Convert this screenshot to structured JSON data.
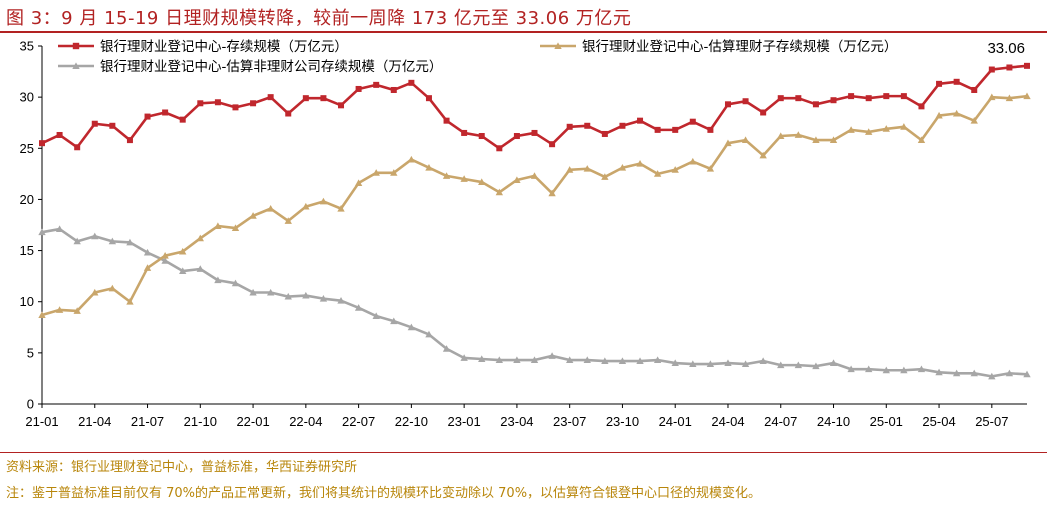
{
  "title": "图 3：9 月 15-19 日理财规模转降，较前一周降 173 亿元至 33.06 万亿元",
  "source": "资料来源：银行业理财登记中心，普益标准，华西证券研究所",
  "note": "注：鉴于普益标准目前仅有 70%的产品正常更新，我们将其统计的规模环比变动除以 70%，以估算符合银登中心口径的规模变化。",
  "chart_data": {
    "type": "line",
    "title": "",
    "xlabel": "",
    "ylabel": "",
    "ylim": [
      0,
      35
    ],
    "yticks": [
      0,
      5,
      10,
      15,
      20,
      25,
      30,
      35
    ],
    "x_tick_labels": [
      "21-01",
      "21-04",
      "21-07",
      "21-10",
      "22-01",
      "22-04",
      "22-07",
      "22-10",
      "23-01",
      "23-04",
      "23-07",
      "23-10",
      "24-01",
      "24-04",
      "24-07",
      "24-10",
      "25-01",
      "25-04",
      "25-07"
    ],
    "x_tick_index": [
      0,
      3,
      6,
      9,
      12,
      15,
      18,
      21,
      24,
      27,
      30,
      33,
      36,
      39,
      42,
      45,
      48,
      51,
      54
    ],
    "legend_position": "top",
    "annotation": {
      "text": "33.06",
      "series": 0,
      "point": "last"
    },
    "series": [
      {
        "name": "银行理财业登记中心-存续规模（万亿元）",
        "color": "#c0272d",
        "marker": "square",
        "values": [
          25.5,
          26.3,
          25.1,
          27.4,
          27.2,
          25.8,
          28.1,
          28.5,
          27.8,
          29.4,
          29.5,
          29.0,
          29.4,
          30.0,
          28.4,
          29.9,
          29.9,
          29.2,
          30.8,
          31.2,
          30.7,
          31.4,
          29.9,
          27.7,
          26.5,
          26.2,
          25.0,
          26.2,
          26.5,
          25.4,
          27.1,
          27.2,
          26.4,
          27.2,
          27.7,
          26.8,
          26.8,
          27.6,
          26.8,
          29.3,
          29.6,
          28.5,
          29.9,
          29.9,
          29.3,
          29.7,
          30.1,
          29.9,
          30.1,
          30.1,
          29.1,
          31.3,
          31.5,
          30.7,
          32.7,
          32.9,
          33.06
        ]
      },
      {
        "name": "银行理财业登记中心-估算理财子存续规模（万亿元）",
        "color": "#c9a66b",
        "marker": "triangle",
        "values": [
          8.7,
          9.2,
          9.1,
          10.9,
          11.3,
          10.0,
          13.3,
          14.5,
          14.9,
          16.2,
          17.4,
          17.2,
          18.4,
          19.1,
          17.9,
          19.3,
          19.8,
          19.1,
          21.6,
          22.6,
          22.6,
          23.9,
          23.1,
          22.3,
          22.0,
          21.7,
          20.7,
          21.9,
          22.3,
          20.6,
          22.9,
          23.0,
          22.2,
          23.1,
          23.5,
          22.5,
          22.9,
          23.7,
          23.0,
          25.5,
          25.8,
          24.3,
          26.2,
          26.3,
          25.8,
          25.8,
          26.8,
          26.6,
          26.9,
          27.1,
          25.8,
          28.2,
          28.4,
          27.7,
          30.0,
          29.9,
          30.1
        ]
      },
      {
        "name": "银行理财业登记中心-估算非理财公司存续规模（万亿元）",
        "color": "#a6a6a6",
        "marker": "triangle",
        "values": [
          16.8,
          17.1,
          15.9,
          16.4,
          15.9,
          15.8,
          14.8,
          14.0,
          13.0,
          13.2,
          12.1,
          11.8,
          10.9,
          10.9,
          10.5,
          10.6,
          10.3,
          10.1,
          9.4,
          8.6,
          8.1,
          7.5,
          6.8,
          5.4,
          4.5,
          4.4,
          4.3,
          4.3,
          4.3,
          4.7,
          4.3,
          4.3,
          4.2,
          4.2,
          4.2,
          4.3,
          4.0,
          3.9,
          3.9,
          4.0,
          3.9,
          4.2,
          3.8,
          3.8,
          3.7,
          4.0,
          3.4,
          3.4,
          3.3,
          3.3,
          3.4,
          3.1,
          3.0,
          3.0,
          2.7,
          3.0,
          2.9
        ]
      }
    ]
  }
}
